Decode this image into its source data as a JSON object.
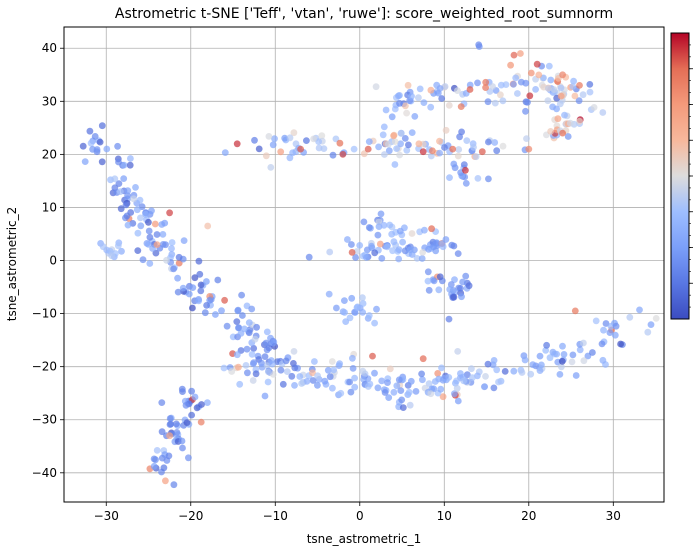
{
  "chart_data": {
    "type": "scatter",
    "title": "Astrometric t-SNE ['Teff', 'vtan', 'ruwe']: score_weighted_root_sumnorm",
    "xlabel": "tsne_astrometric_1",
    "ylabel": "tsne_astrometric_2",
    "xlim": [
      -35,
      36
    ],
    "ylim": [
      -45.5,
      44
    ],
    "x_ticks": [
      -30,
      -20,
      -10,
      0,
      10,
      20,
      30
    ],
    "y_ticks": [
      -40,
      -30,
      -20,
      -10,
      0,
      10,
      20,
      30,
      40
    ],
    "x_tick_labels": [
      "−30",
      "−20",
      "−10",
      "0",
      "10",
      "20",
      "30"
    ],
    "y_tick_labels": [
      "−40",
      "−30",
      "−20",
      "−10",
      "0",
      "10",
      "20",
      "30",
      "40"
    ],
    "grid": true,
    "colormap": "coolwarm",
    "colorbar": {
      "range": [
        0,
        1
      ],
      "major_ticks": 8,
      "minor_ticks": 24,
      "tick_labels_visible": false
    },
    "marker_alpha": 0.7,
    "points": {
      "seed": 12345,
      "clusters": [
        {
          "path": [
            [
              -31,
              24
            ],
            [
              -30,
              20
            ],
            [
              -29,
              17
            ],
            [
              -28,
              14
            ],
            [
              -27,
              11
            ],
            [
              -26,
              8
            ],
            [
              -25,
              5
            ],
            [
              -24,
              3
            ],
            [
              -23,
              1
            ],
            [
              -21,
              -2
            ],
            [
              -19,
              -5
            ],
            [
              -17,
              -8
            ],
            [
              -15,
              -10
            ],
            [
              -14,
              -12
            ],
            [
              -13,
              -14
            ],
            [
              -12,
              -16
            ],
            [
              -11,
              -17
            ],
            [
              -10,
              -19
            ]
          ],
          "n": 170,
          "spread": 1.3,
          "color_mean": 0.22,
          "color_sd": 0.1
        },
        {
          "path": [
            [
              -31,
              3
            ],
            [
              -30,
              2
            ],
            [
              -29,
              1.5
            ],
            [
              -28,
              2
            ]
          ],
          "n": 12,
          "spread": 0.6,
          "color_mean": 0.38,
          "color_sd": 0.05
        },
        {
          "path": [
            [
              -24,
              -40
            ],
            [
              -23,
              -36
            ],
            [
              -22,
              -33
            ],
            [
              -21,
              -30
            ],
            [
              -20,
              -27
            ],
            [
              -19,
              -26
            ]
          ],
          "n": 55,
          "spread": 1.1,
          "color_mean": 0.2,
          "color_sd": 0.09
        },
        {
          "path": [
            [
              -15,
              -20
            ],
            [
              -10,
              -21
            ],
            [
              -5,
              -22
            ],
            [
              0,
              -23
            ],
            [
              5,
              -24
            ],
            [
              10,
              -23
            ],
            [
              15,
              -22
            ],
            [
              20,
              -20
            ],
            [
              25,
              -17
            ],
            [
              30,
              -14
            ],
            [
              33,
              -12
            ]
          ],
          "n": 210,
          "spread": 1.8,
          "color_mean": 0.3,
          "color_sd": 0.11
        },
        {
          "path": [
            [
              -14,
              21
            ],
            [
              -10,
              22
            ],
            [
              -5,
              22
            ],
            [
              0,
              22
            ],
            [
              5,
              22
            ],
            [
              10,
              22
            ],
            [
              14,
              21
            ],
            [
              18,
              21
            ]
          ],
          "n": 90,
          "spread": 1.6,
          "color_mean": 0.37,
          "color_sd": 0.14
        },
        {
          "path": [
            [
              3,
              29
            ],
            [
              6,
              31
            ],
            [
              10,
              32
            ],
            [
              14,
              32
            ],
            [
              18,
              32
            ],
            [
              22,
              33
            ],
            [
              25,
              31
            ]
          ],
          "n": 80,
          "spread": 1.5,
          "color_mean": 0.35,
          "color_sd": 0.14
        },
        {
          "path": [
            [
              19,
              37
            ],
            [
              22,
              35
            ],
            [
              24,
              33
            ],
            [
              25,
              30
            ],
            [
              25,
              27
            ],
            [
              23,
              24
            ],
            [
              21,
              22
            ]
          ],
          "n": 60,
          "spread": 1.4,
          "color_mean": 0.48,
          "color_sd": 0.18
        },
        {
          "path": [
            [
              -3,
              1
            ],
            [
              0,
              2
            ],
            [
              3,
              2
            ],
            [
              6,
              2
            ],
            [
              9,
              4
            ],
            [
              10,
              2
            ]
          ],
          "n": 60,
          "spread": 1.3,
          "color_mean": 0.28,
          "color_sd": 0.09
        },
        {
          "path": [
            [
              1,
              7
            ],
            [
              4,
              6
            ],
            [
              7,
              5
            ]
          ],
          "n": 20,
          "spread": 1.0,
          "color_mean": 0.3,
          "color_sd": 0.08
        },
        {
          "path": [
            [
              -2,
              -8
            ],
            [
              0,
              -10
            ],
            [
              2,
              -7
            ]
          ],
          "n": 20,
          "spread": 1.3,
          "color_mean": 0.28,
          "color_sd": 0.07
        },
        {
          "path": [
            [
              9,
              -2
            ],
            [
              10,
              -5
            ],
            [
              11,
              -8
            ],
            [
              12,
              -5
            ],
            [
              13,
              -6
            ]
          ],
          "n": 28,
          "spread": 1.1,
          "color_mean": 0.2,
          "color_sd": 0.07
        },
        {
          "path": [
            [
              11,
              18
            ],
            [
              12,
              16
            ],
            [
              13,
              14
            ]
          ],
          "n": 12,
          "spread": 0.9,
          "color_mean": 0.3,
          "color_sd": 0.2
        },
        {
          "path": [
            [
              14,
              40.5
            ]
          ],
          "n": 2,
          "spread": 0.3,
          "color_mean": 0.15,
          "color_sd": 0.05
        }
      ],
      "highlights": [
        {
          "x": -22.5,
          "y": 9,
          "c": 0.93
        },
        {
          "x": -14.5,
          "y": 22,
          "c": 0.95
        },
        {
          "x": -7,
          "y": 21,
          "c": 0.9
        },
        {
          "x": -2,
          "y": 20,
          "c": 0.92
        },
        {
          "x": 1,
          "y": 21,
          "c": 0.9
        },
        {
          "x": 7.5,
          "y": 20.5,
          "c": 0.95
        },
        {
          "x": 11,
          "y": 21,
          "c": 0.88
        },
        {
          "x": 12.5,
          "y": 17,
          "c": 0.95
        },
        {
          "x": 12,
          "y": 29,
          "c": 0.85
        },
        {
          "x": 14.5,
          "y": 20.5,
          "c": 0.9
        },
        {
          "x": 21,
          "y": 37,
          "c": 0.93
        },
        {
          "x": 24,
          "y": 24,
          "c": 0.88
        },
        {
          "x": 26,
          "y": 33,
          "c": 0.85
        },
        {
          "x": 8.5,
          "y": 6,
          "c": 0.88
        },
        {
          "x": -16,
          "y": -7.5,
          "c": 0.9
        },
        {
          "x": 1.5,
          "y": -18,
          "c": 0.9
        },
        {
          "x": 7.5,
          "y": -18.5,
          "c": 0.88
        },
        {
          "x": 25.5,
          "y": -9.5,
          "c": 0.85
        },
        {
          "x": -24,
          "y": 3,
          "c": 0.72
        },
        {
          "x": -18,
          "y": 6.5,
          "c": 0.6
        },
        {
          "x": -22.5,
          "y": -33,
          "c": 0.7
        },
        {
          "x": -23,
          "y": -41.5,
          "c": 0.72
        },
        {
          "x": 24,
          "y": 35,
          "c": 0.82
        },
        {
          "x": 20,
          "y": 21,
          "c": 0.8
        },
        {
          "x": 4,
          "y": 23.5,
          "c": 0.7
        },
        {
          "x": 7,
          "y": 22,
          "c": 0.65
        }
      ]
    }
  }
}
